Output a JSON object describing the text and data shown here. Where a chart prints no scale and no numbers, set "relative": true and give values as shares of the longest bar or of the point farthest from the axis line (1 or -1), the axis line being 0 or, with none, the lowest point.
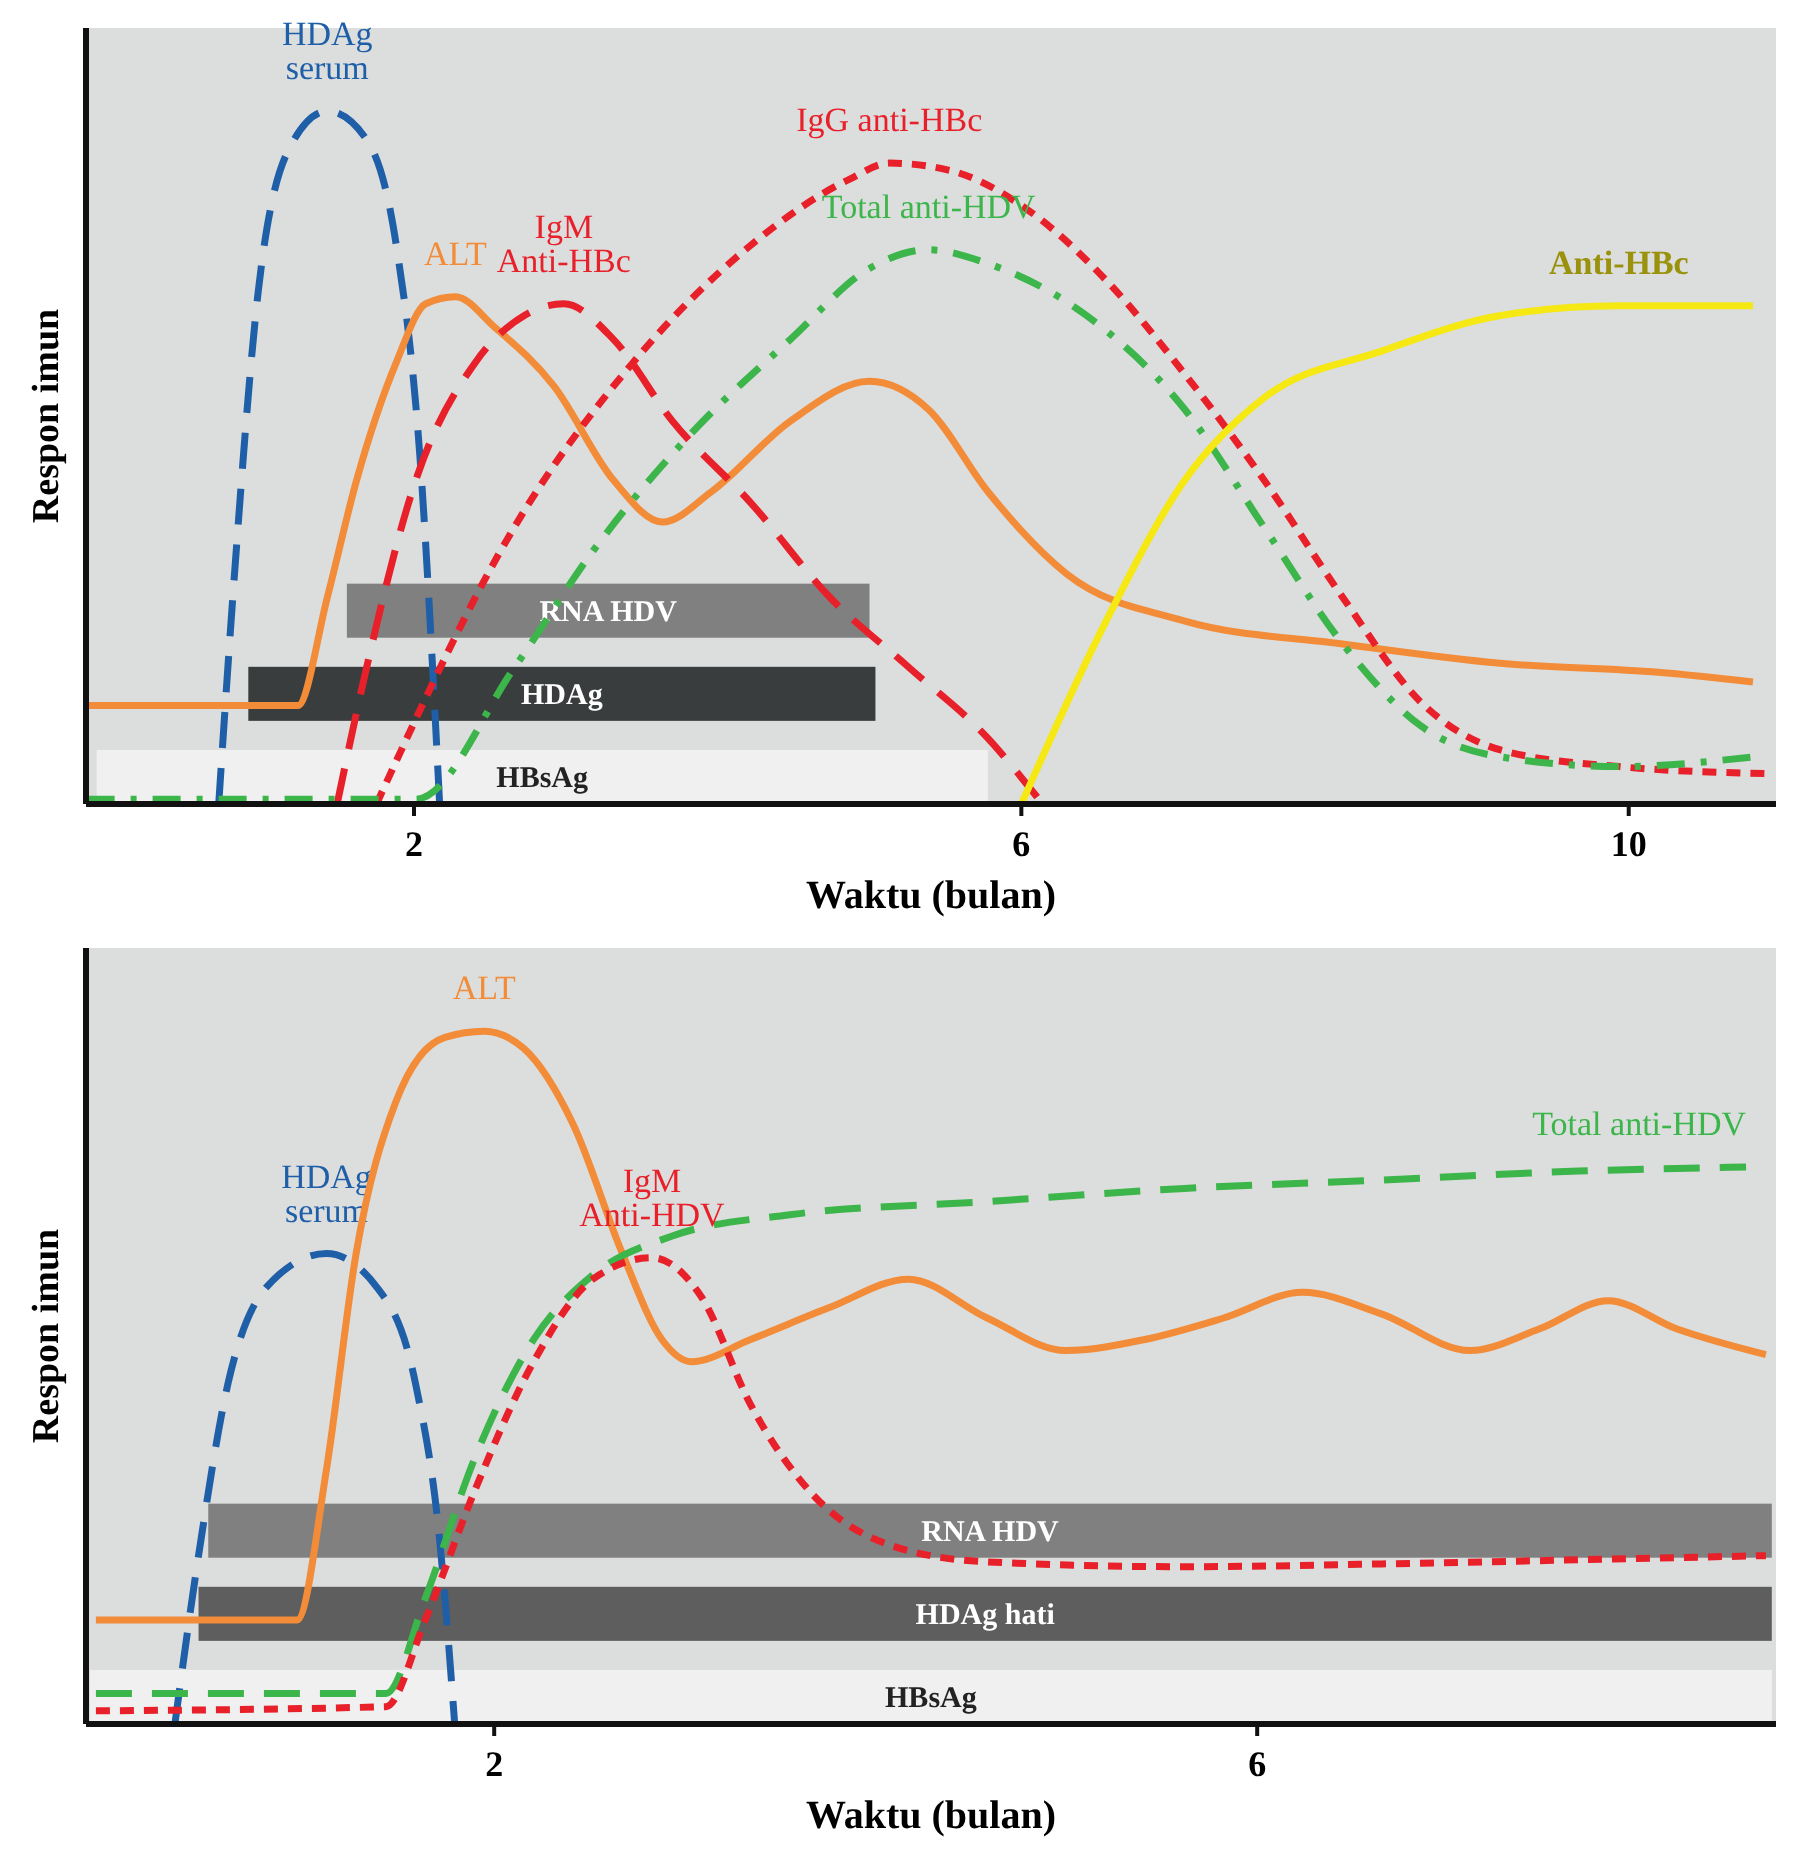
{
  "chart_data": [
    {
      "type": "line",
      "relative": true,
      "xlabel": "Waktu (bulan)",
      "ylabel": "Respon imun",
      "xlim": [
        -0.16,
        10.97
      ],
      "xticks": [
        2,
        6,
        10
      ],
      "bands": [
        {
          "axis": "x",
          "from": -0.09,
          "to": 5.779,
          "label": "HBsAg",
          "color": "#f0f0f0"
        },
        {
          "axis": "x",
          "from": 0.909,
          "to": 5.039,
          "label": "HDAg",
          "color": "#3a3d3d"
        },
        {
          "axis": "x",
          "from": 1.558,
          "to": 5.0,
          "label": "RNA HDV",
          "color": "#808080"
        }
      ],
      "series": [
        {
          "name": "HDAg\nserum",
          "color": "#1f5fa8",
          "line_style": "dashed",
          "x": [
            0.714,
            0.818,
            0.974,
            1.169,
            1.429,
            1.688,
            1.883,
            2.039,
            2.169
          ],
          "values": [
            0,
            0.332,
            0.739,
            0.942,
            1,
            0.959,
            0.807,
            0.502,
            0
          ]
        },
        {
          "name": "ALT",
          "color": "#f28c38",
          "line_style": "solid",
          "x": [
            -0.156,
            1.234,
            1.429,
            1.623,
            1.883,
            2.078,
            2.273,
            2.532,
            2.922,
            3.312,
            3.636,
            3.961,
            4.481,
            5.0,
            5.39,
            5.779,
            6.299,
            7.078,
            8.117,
            9.156,
            10.195,
            10.818
          ],
          "values": [
            0.142,
            0.142,
            0.298,
            0.468,
            0.637,
            0.722,
            0.732,
            0.688,
            0.603,
            0.468,
            0.407,
            0.451,
            0.553,
            0.61,
            0.569,
            0.451,
            0.332,
            0.264,
            0.231,
            0.203,
            0.19,
            0.176
          ]
        },
        {
          "name": "IgM\nAnti-HBc",
          "color": "#e8202a",
          "line_style": "dashed",
          "x": [
            1.494,
            1.688,
            2.013,
            2.403,
            2.727,
            2.987,
            3.312,
            3.701,
            4.221,
            4.74,
            5.26,
            5.779,
            6.104
          ],
          "values": [
            0,
            0.197,
            0.468,
            0.637,
            0.705,
            0.722,
            0.671,
            0.553,
            0.434,
            0.298,
            0.197,
            0.095,
            0.01
          ]
        },
        {
          "name": "IgG anti-HBc",
          "color": "#e8202a",
          "line_style": "dotted",
          "x": [
            1.753,
            2.662,
            3.442,
            4.221,
            4.87,
            5.13,
            5.519,
            6.039,
            6.558,
            7.078,
            7.597,
            8.117,
            8.636,
            9.156,
            9.935,
            10.909
          ],
          "values": [
            0,
            0.4,
            0.637,
            0.807,
            0.902,
            0.925,
            0.915,
            0.858,
            0.756,
            0.62,
            0.468,
            0.298,
            0.146,
            0.078,
            0.054,
            0.044
          ]
        },
        {
          "name": "Total anti-HDV",
          "color": "#3cb54a",
          "line_style": "dashdot",
          "x": [
            -0.156,
            2.013,
            2.662,
            3.182,
            3.831,
            4.481,
            5.0,
            5.39,
            5.779,
            6.429,
            7.078,
            7.597,
            8.117,
            8.636,
            9.156,
            9.935,
            10.818
          ],
          "values": [
            0.007,
            0.007,
            0.197,
            0.366,
            0.536,
            0.671,
            0.773,
            0.8,
            0.78,
            0.705,
            0.569,
            0.4,
            0.231,
            0.112,
            0.068,
            0.054,
            0.068
          ]
        },
        {
          "name": "Anti-HBc",
          "color": "#f5e813",
          "line_style": "solid",
          "x": [
            6,
            6.558,
            7.078,
            7.597,
            8.377,
            9.156,
            9.935,
            10.818
          ],
          "values": [
            0,
            0.264,
            0.468,
            0.586,
            0.654,
            0.705,
            0.719,
            0.719
          ]
        }
      ]
    },
    {
      "type": "line",
      "relative": true,
      "xlabel": "Waktu (bulan)",
      "ylabel": "Respon imun",
      "xlim": [
        -0.14,
        8.72
      ],
      "xticks": [
        2,
        6
      ],
      "bands": [
        {
          "axis": "x",
          "from": -0.119,
          "to": 8.698,
          "label": "HBsAg",
          "color": "#f0f0f0"
        },
        {
          "axis": "x",
          "from": 0.45,
          "to": 8.698,
          "label": "HDAg hati",
          "color": "#5e5e5e"
        },
        {
          "axis": "x",
          "from": 0.501,
          "to": 8.698,
          "label": "RNA HDV",
          "color": "#808080"
        }
      ],
      "series": [
        {
          "name": "HDAg\nserum",
          "color": "#1f5fa8",
          "line_style": "dashed",
          "x": [
            0.326,
            0.45,
            0.605,
            0.811,
            1.121,
            1.38,
            1.587,
            1.711,
            1.793
          ],
          "values": [
            0,
            0.243,
            0.492,
            0.632,
            0.679,
            0.632,
            0.492,
            0.274,
            0
          ]
        },
        {
          "name": "ALT",
          "color": "#f28c38",
          "line_style": "solid",
          "x": [
            -0.088,
            0.966,
            1.121,
            1.276,
            1.483,
            1.742,
            1.948,
            2.155,
            2.413,
            2.672,
            2.879,
            3.034,
            3.344,
            3.757,
            4.171,
            4.584,
            4.997,
            5.411,
            5.824,
            6.238,
            6.651,
            7.116,
            7.478,
            7.84,
            8.202,
            8.667
          ],
          "values": [
            0.15,
            0.15,
            0.368,
            0.679,
            0.897,
            0.991,
            1,
            0.975,
            0.866,
            0.679,
            0.555,
            0.523,
            0.555,
            0.601,
            0.642,
            0.586,
            0.539,
            0.555,
            0.586,
            0.623,
            0.592,
            0.539,
            0.57,
            0.611,
            0.57,
            0.533
          ]
        },
        {
          "name": "Total anti-HDV",
          "color": "#3cb54a",
          "line_style": "dashed",
          "x": [
            -0.088,
            1.432,
            1.638,
            1.897,
            2.207,
            2.517,
            2.93,
            3.55,
            4.584,
            5.618,
            6.651,
            7.685,
            8.563
          ],
          "values": [
            0.044,
            0.044,
            0.181,
            0.383,
            0.555,
            0.648,
            0.704,
            0.735,
            0.754,
            0.773,
            0.785,
            0.798,
            0.804
          ]
        },
        {
          "name": "IgM\nAnti-HDV",
          "color": "#e8202a",
          "line_style": "dotted",
          "x": [
            -0.088,
            1.432,
            1.638,
            1.897,
            2.207,
            2.517,
            2.827,
            3.085,
            3.344,
            3.654,
            4.067,
            4.584,
            5.618,
            6.651,
            7.685,
            8.667
          ],
          "values": [
            0.019,
            0.025,
            0.15,
            0.336,
            0.523,
            0.642,
            0.673,
            0.617,
            0.461,
            0.336,
            0.259,
            0.234,
            0.227,
            0.231,
            0.237,
            0.243
          ]
        }
      ]
    }
  ]
}
